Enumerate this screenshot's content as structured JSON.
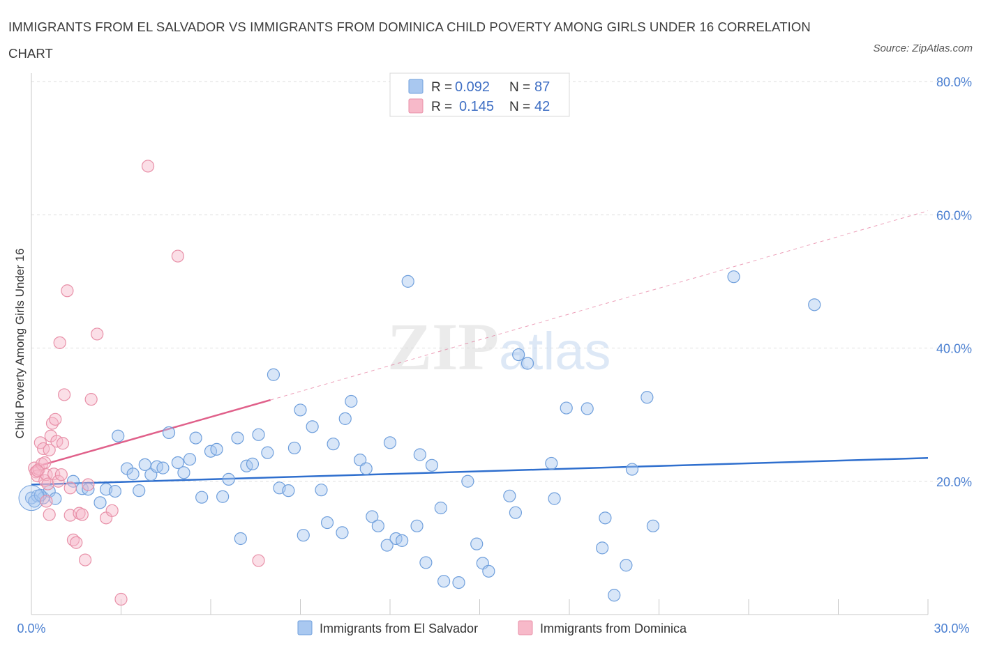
{
  "header": {
    "title": "IMMIGRANTS FROM EL SALVADOR VS IMMIGRANTS FROM DOMINICA CHILD POVERTY AMONG GIRLS UNDER 16 CORRELATION CHART",
    "source": "Source: ZipAtlas.com"
  },
  "watermark": {
    "zip": "ZIP",
    "atlas": "atlas"
  },
  "legend": {
    "r_label": "R =",
    "n_label": "N =",
    "items": [
      {
        "r": "0.092",
        "n": "87",
        "color": "#a9c8f0"
      },
      {
        "r": "0.145",
        "n": "42",
        "color": "#f7b9c9"
      }
    ]
  },
  "chart_data": {
    "type": "scatter",
    "xlabel": "",
    "ylabel": "Child Poverty Among Girls Under 16",
    "xlim": [
      0,
      30
    ],
    "ylim": [
      0,
      80
    ],
    "x_tick_labels": [
      "0.0%",
      "30.0%"
    ],
    "y_ticks": [
      20,
      40,
      60,
      80
    ],
    "y_tick_labels": [
      "20.0%",
      "40.0%",
      "60.0%",
      "80.0%"
    ],
    "grid": true,
    "legend_position": "bottom-center",
    "series": [
      {
        "name": "Immigrants from El Salvador",
        "color": "#a9c8f0",
        "stroke": "#6f9fdc",
        "line_color": "#2f6fce",
        "trend": {
          "x": [
            0,
            30
          ],
          "y": [
            19.5,
            23.5
          ],
          "dashed_extension": false
        },
        "points": [
          [
            0.0,
            17.5
          ],
          [
            0.2,
            17.8
          ],
          [
            0.4,
            17.5
          ],
          [
            0.6,
            18.5
          ],
          [
            0.8,
            17.4
          ],
          [
            1.4,
            20.0
          ],
          [
            1.7,
            18.9
          ],
          [
            1.9,
            18.8
          ],
          [
            2.3,
            16.8
          ],
          [
            2.5,
            18.8
          ],
          [
            2.8,
            18.5
          ],
          [
            2.9,
            26.8
          ],
          [
            3.2,
            21.9
          ],
          [
            3.4,
            21.1
          ],
          [
            3.6,
            18.6
          ],
          [
            3.8,
            22.5
          ],
          [
            4.0,
            21.0
          ],
          [
            4.2,
            22.2
          ],
          [
            4.4,
            22.0
          ],
          [
            4.6,
            27.3
          ],
          [
            4.9,
            22.8
          ],
          [
            5.1,
            21.3
          ],
          [
            5.3,
            23.3
          ],
          [
            5.5,
            26.5
          ],
          [
            5.7,
            17.6
          ],
          [
            6.0,
            24.5
          ],
          [
            6.2,
            24.8
          ],
          [
            6.4,
            17.7
          ],
          [
            6.6,
            20.3
          ],
          [
            6.9,
            26.5
          ],
          [
            7.0,
            11.4
          ],
          [
            7.2,
            22.3
          ],
          [
            7.4,
            22.6
          ],
          [
            7.6,
            27.0
          ],
          [
            7.9,
            24.3
          ],
          [
            8.1,
            36.0
          ],
          [
            8.3,
            19.0
          ],
          [
            8.6,
            18.6
          ],
          [
            8.8,
            25.0
          ],
          [
            9.0,
            30.7
          ],
          [
            9.1,
            11.9
          ],
          [
            9.4,
            28.2
          ],
          [
            9.7,
            18.7
          ],
          [
            9.9,
            13.8
          ],
          [
            10.1,
            25.6
          ],
          [
            10.4,
            12.3
          ],
          [
            10.5,
            29.4
          ],
          [
            10.7,
            32.0
          ],
          [
            11.0,
            23.2
          ],
          [
            11.2,
            21.9
          ],
          [
            11.4,
            14.7
          ],
          [
            11.6,
            13.3
          ],
          [
            11.9,
            10.4
          ],
          [
            12.0,
            25.8
          ],
          [
            12.2,
            11.4
          ],
          [
            12.4,
            11.1
          ],
          [
            12.6,
            50.0
          ],
          [
            12.9,
            13.3
          ],
          [
            13.0,
            24.0
          ],
          [
            13.2,
            7.8
          ],
          [
            13.4,
            22.4
          ],
          [
            13.7,
            16.0
          ],
          [
            13.8,
            5.0
          ],
          [
            14.3,
            4.8
          ],
          [
            14.6,
            20.0
          ],
          [
            14.9,
            10.6
          ],
          [
            15.1,
            7.7
          ],
          [
            15.3,
            6.5
          ],
          [
            16.0,
            17.8
          ],
          [
            16.2,
            15.3
          ],
          [
            16.3,
            39.0
          ],
          [
            16.6,
            37.7
          ],
          [
            17.4,
            22.7
          ],
          [
            17.5,
            17.4
          ],
          [
            17.9,
            31.0
          ],
          [
            18.6,
            30.9
          ],
          [
            19.1,
            10.0
          ],
          [
            19.2,
            14.5
          ],
          [
            19.5,
            2.9
          ],
          [
            19.9,
            7.4
          ],
          [
            20.1,
            21.8
          ],
          [
            20.6,
            32.6
          ],
          [
            20.8,
            13.3
          ],
          [
            23.5,
            50.7
          ],
          [
            26.2,
            46.5
          ],
          [
            0.1,
            17.0
          ],
          [
            0.3,
            17.9
          ]
        ]
      },
      {
        "name": "Immigrants from Dominica",
        "color": "#f7b9c9",
        "stroke": "#e890a8",
        "line_color": "#e0608a",
        "trend": {
          "x": [
            0,
            8.0
          ],
          "y": [
            22.0,
            32.2
          ],
          "dashed_extension": true,
          "extend_to_x": 30,
          "extend_to_y": 60.6
        },
        "points": [
          [
            0.1,
            22.0
          ],
          [
            0.15,
            21.4
          ],
          [
            0.2,
            20.8
          ],
          [
            0.25,
            21.8
          ],
          [
            0.3,
            25.8
          ],
          [
            0.35,
            22.6
          ],
          [
            0.4,
            24.9
          ],
          [
            0.45,
            20.1
          ],
          [
            0.5,
            21.0
          ],
          [
            0.55,
            19.6
          ],
          [
            0.6,
            24.7
          ],
          [
            0.65,
            26.8
          ],
          [
            0.7,
            28.7
          ],
          [
            0.75,
            21.1
          ],
          [
            0.8,
            29.3
          ],
          [
            0.85,
            26.0
          ],
          [
            0.9,
            20.0
          ],
          [
            0.95,
            40.8
          ],
          [
            1.0,
            21.0
          ],
          [
            1.05,
            25.7
          ],
          [
            1.1,
            33.0
          ],
          [
            1.2,
            48.6
          ],
          [
            1.3,
            14.9
          ],
          [
            1.4,
            11.2
          ],
          [
            1.5,
            10.8
          ],
          [
            1.6,
            15.2
          ],
          [
            1.7,
            15.0
          ],
          [
            1.8,
            8.2
          ],
          [
            1.9,
            19.5
          ],
          [
            2.0,
            32.3
          ],
          [
            2.2,
            42.1
          ],
          [
            2.5,
            14.5
          ],
          [
            2.7,
            15.6
          ],
          [
            3.0,
            2.3
          ],
          [
            3.9,
            67.3
          ],
          [
            4.9,
            53.8
          ],
          [
            7.6,
            8.1
          ],
          [
            0.45,
            22.8
          ],
          [
            0.5,
            17.0
          ],
          [
            0.6,
            15.0
          ],
          [
            1.3,
            19.0
          ],
          [
            0.2,
            21.6
          ]
        ]
      }
    ]
  }
}
